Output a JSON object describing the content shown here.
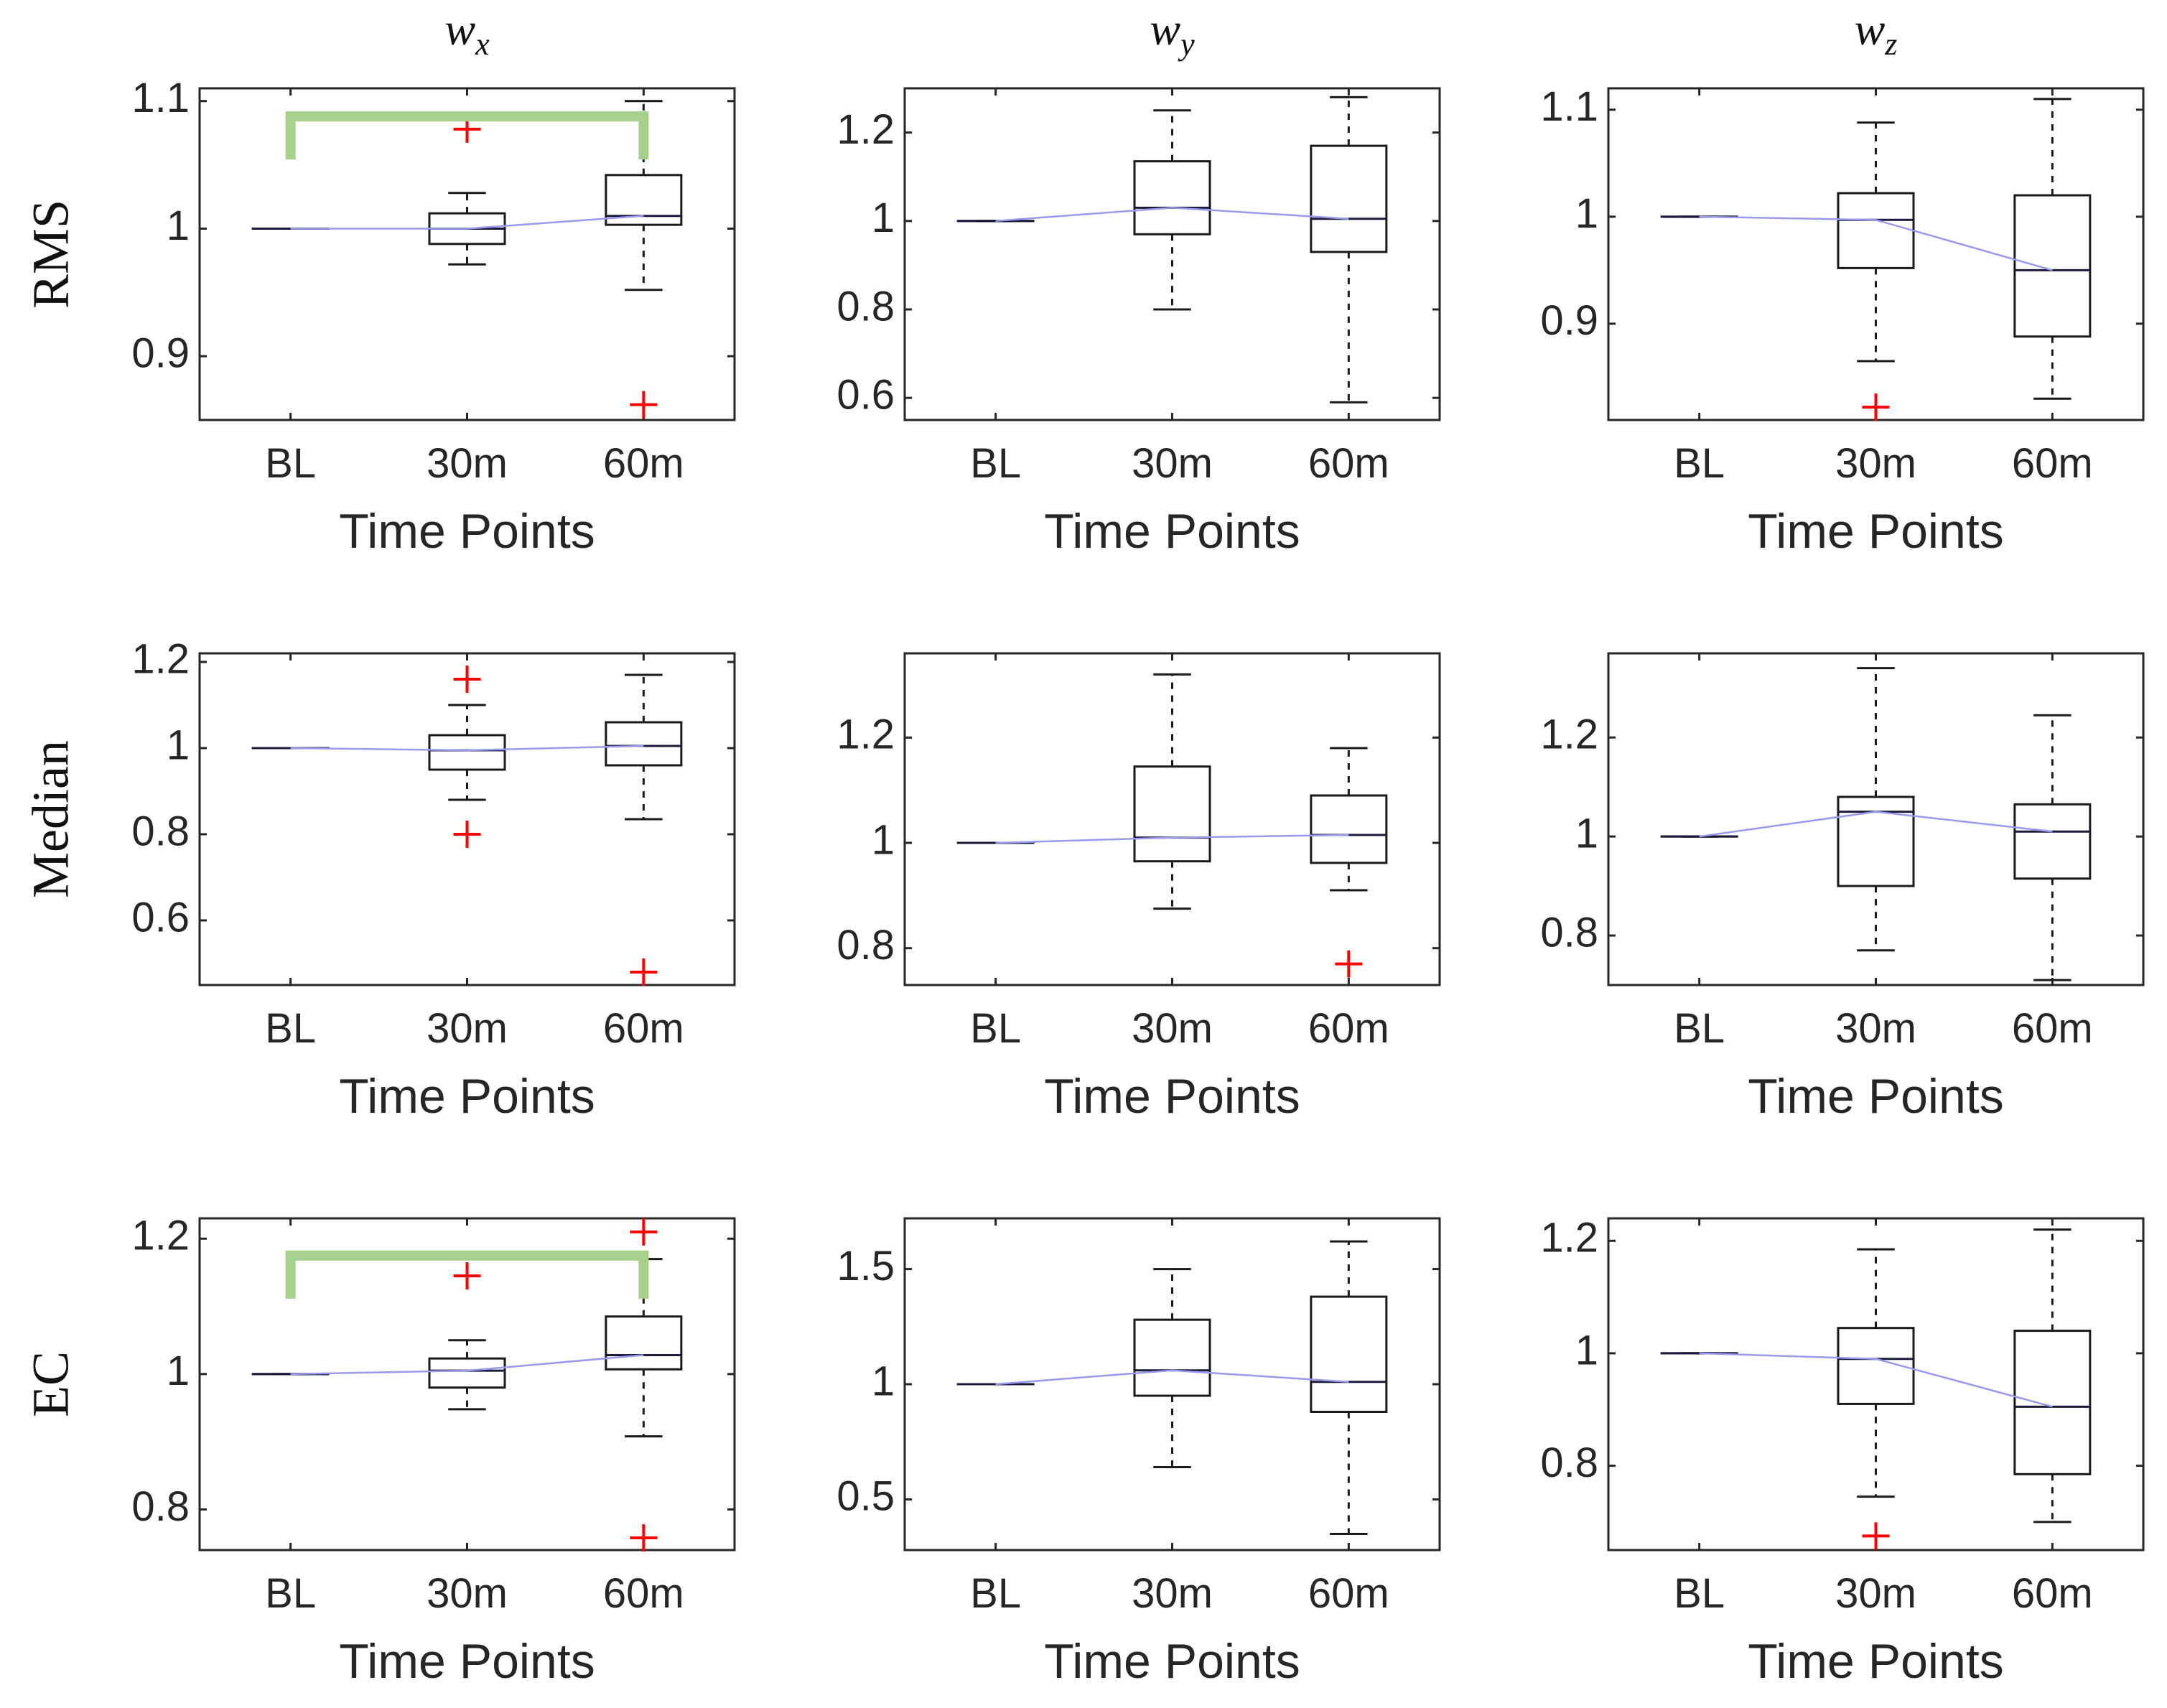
{
  "chart_data": {
    "type": "box",
    "layout": "3x3 grid",
    "column_titles": [
      {
        "base": "w",
        "sub": "x"
      },
      {
        "base": "w",
        "sub": "y"
      },
      {
        "base": "w",
        "sub": "z"
      }
    ],
    "row_titles": [
      "RMS",
      "Median",
      "EC"
    ],
    "categories": [
      "BL",
      "30m",
      "60m"
    ],
    "xlabel": "Time Points",
    "colors": {
      "box": "#1a1a1a",
      "outlier": "#ff0000",
      "median_line": "#9999ee",
      "significance": "#a8d08d"
    },
    "panels": [
      {
        "row": "RMS",
        "col": "w_x",
        "ylim": [
          0.85,
          1.11
        ],
        "yticks": [
          0.9,
          1,
          1.1
        ],
        "ytick_labels": [
          "0.9",
          "1",
          "1.1"
        ],
        "boxes": [
          {
            "label": "BL",
            "min": 1.0,
            "q1": 1.0,
            "median": 1.0,
            "q3": 1.0,
            "max": 1.0,
            "outliers": []
          },
          {
            "label": "30m",
            "min": 0.972,
            "q1": 0.988,
            "median": 1.0,
            "q3": 1.012,
            "max": 1.028,
            "outliers": [
              1.078
            ]
          },
          {
            "label": "60m",
            "min": 0.952,
            "q1": 1.003,
            "median": 1.01,
            "q3": 1.042,
            "max": 1.1,
            "outliers": [
              0.862
            ]
          }
        ],
        "significance": [
          {
            "from": "BL",
            "to": "60m",
            "y": 1.088
          }
        ]
      },
      {
        "row": "RMS",
        "col": "w_y",
        "ylim": [
          0.55,
          1.3
        ],
        "yticks": [
          0.6,
          0.8,
          1,
          1.2
        ],
        "ytick_labels": [
          "0.6",
          "0.8",
          "1",
          "1.2"
        ],
        "boxes": [
          {
            "label": "BL",
            "min": 1.0,
            "q1": 1.0,
            "median": 1.0,
            "q3": 1.0,
            "max": 1.0,
            "outliers": []
          },
          {
            "label": "30m",
            "min": 0.8,
            "q1": 0.97,
            "median": 1.03,
            "q3": 1.135,
            "max": 1.25,
            "outliers": []
          },
          {
            "label": "60m",
            "min": 0.59,
            "q1": 0.93,
            "median": 1.005,
            "q3": 1.17,
            "max": 1.28,
            "outliers": []
          }
        ]
      },
      {
        "row": "RMS",
        "col": "w_z",
        "ylim": [
          0.81,
          1.12
        ],
        "yticks": [
          0.9,
          1,
          1.1
        ],
        "ytick_labels": [
          "0.9",
          "1",
          "1.1"
        ],
        "boxes": [
          {
            "label": "BL",
            "min": 1.0,
            "q1": 1.0,
            "median": 1.0,
            "q3": 1.0,
            "max": 1.0,
            "outliers": []
          },
          {
            "label": "30m",
            "min": 0.865,
            "q1": 0.952,
            "median": 0.997,
            "q3": 1.022,
            "max": 1.088,
            "outliers": [
              0.822
            ]
          },
          {
            "label": "60m",
            "min": 0.83,
            "q1": 0.888,
            "median": 0.95,
            "q3": 1.02,
            "max": 1.11,
            "outliers": []
          }
        ]
      },
      {
        "row": "Median",
        "col": "w_x",
        "ylim": [
          0.45,
          1.22
        ],
        "yticks": [
          0.6,
          0.8,
          1,
          1.2
        ],
        "ytick_labels": [
          "0.6",
          "0.8",
          "1",
          "1.2"
        ],
        "boxes": [
          {
            "label": "BL",
            "min": 1.0,
            "q1": 1.0,
            "median": 1.0,
            "q3": 1.0,
            "max": 1.0,
            "outliers": []
          },
          {
            "label": "30m",
            "min": 0.88,
            "q1": 0.95,
            "median": 0.995,
            "q3": 1.03,
            "max": 1.1,
            "outliers": [
              1.16,
              0.8
            ]
          },
          {
            "label": "60m",
            "min": 0.835,
            "q1": 0.96,
            "median": 1.005,
            "q3": 1.06,
            "max": 1.17,
            "outliers": [
              0.48
            ]
          }
        ]
      },
      {
        "row": "Median",
        "col": "w_y",
        "ylim": [
          0.73,
          1.36
        ],
        "yticks": [
          0.8,
          1,
          1.2
        ],
        "ytick_labels": [
          "0.8",
          "1",
          "1.2"
        ],
        "boxes": [
          {
            "label": "BL",
            "min": 1.0,
            "q1": 1.0,
            "median": 1.0,
            "q3": 1.0,
            "max": 1.0,
            "outliers": []
          },
          {
            "label": "30m",
            "min": 0.875,
            "q1": 0.965,
            "median": 1.01,
            "q3": 1.145,
            "max": 1.32,
            "outliers": []
          },
          {
            "label": "60m",
            "min": 0.91,
            "q1": 0.962,
            "median": 1.015,
            "q3": 1.09,
            "max": 1.18,
            "outliers": [
              0.77
            ]
          }
        ]
      },
      {
        "row": "Median",
        "col": "w_z",
        "ylim": [
          0.7,
          1.37
        ],
        "yticks": [
          0.8,
          1,
          1.2
        ],
        "ytick_labels": [
          "0.8",
          "1",
          "1.2"
        ],
        "boxes": [
          {
            "label": "BL",
            "min": 1.0,
            "q1": 1.0,
            "median": 1.0,
            "q3": 1.0,
            "max": 1.0,
            "outliers": []
          },
          {
            "label": "30m",
            "min": 0.77,
            "q1": 0.9,
            "median": 1.05,
            "q3": 1.08,
            "max": 1.34,
            "outliers": []
          },
          {
            "label": "60m",
            "min": 0.71,
            "q1": 0.915,
            "median": 1.01,
            "q3": 1.065,
            "max": 1.245,
            "outliers": []
          }
        ]
      },
      {
        "row": "EC",
        "col": "w_x",
        "ylim": [
          0.74,
          1.23
        ],
        "yticks": [
          0.8,
          1,
          1.2
        ],
        "ytick_labels": [
          "0.8",
          "1",
          "1.2"
        ],
        "boxes": [
          {
            "label": "BL",
            "min": 1.0,
            "q1": 1.0,
            "median": 1.0,
            "q3": 1.0,
            "max": 1.0,
            "outliers": []
          },
          {
            "label": "30m",
            "min": 0.948,
            "q1": 0.98,
            "median": 1.005,
            "q3": 1.023,
            "max": 1.05,
            "outliers": [
              1.145
            ]
          },
          {
            "label": "60m",
            "min": 0.908,
            "q1": 1.007,
            "median": 1.028,
            "q3": 1.085,
            "max": 1.17,
            "outliers": [
              1.21,
              0.758
            ]
          }
        ],
        "significance": [
          {
            "from": "BL",
            "to": "60m",
            "y": 1.175
          }
        ]
      },
      {
        "row": "EC",
        "col": "w_y",
        "ylim": [
          0.28,
          1.72
        ],
        "yticks": [
          0.5,
          1,
          1.5
        ],
        "ytick_labels": [
          "0.5",
          "1",
          "1.5"
        ],
        "boxes": [
          {
            "label": "BL",
            "min": 1.0,
            "q1": 1.0,
            "median": 1.0,
            "q3": 1.0,
            "max": 1.0,
            "outliers": []
          },
          {
            "label": "30m",
            "min": 0.64,
            "q1": 0.95,
            "median": 1.06,
            "q3": 1.28,
            "max": 1.5,
            "outliers": []
          },
          {
            "label": "60m",
            "min": 0.35,
            "q1": 0.88,
            "median": 1.01,
            "q3": 1.38,
            "max": 1.62,
            "outliers": []
          }
        ]
      },
      {
        "row": "EC",
        "col": "w_z",
        "ylim": [
          0.65,
          1.24
        ],
        "yticks": [
          0.8,
          1,
          1.2
        ],
        "ytick_labels": [
          "0.8",
          "1",
          "1.2"
        ],
        "boxes": [
          {
            "label": "BL",
            "min": 1.0,
            "q1": 1.0,
            "median": 1.0,
            "q3": 1.0,
            "max": 1.0,
            "outliers": []
          },
          {
            "label": "30m",
            "min": 0.745,
            "q1": 0.91,
            "median": 0.99,
            "q3": 1.045,
            "max": 1.185,
            "outliers": [
              0.675
            ]
          },
          {
            "label": "60m",
            "min": 0.7,
            "q1": 0.785,
            "median": 0.905,
            "q3": 1.04,
            "max": 1.22,
            "outliers": []
          }
        ]
      }
    ]
  }
}
